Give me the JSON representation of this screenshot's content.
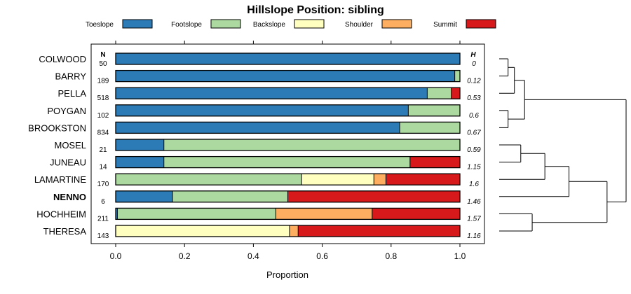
{
  "chart_data": {
    "type": "bar",
    "stacked": "horizontal proportion",
    "title": "Hillslope Position: sibling",
    "xlabel": "Proportion",
    "xlim": [
      0,
      1
    ],
    "xticks": [
      "0.0",
      "0.2",
      "0.4",
      "0.6",
      "0.8",
      "1.0"
    ],
    "legend_placement": "top",
    "n_header": "N",
    "h_header": "H",
    "classes": [
      {
        "name": "Toeslope",
        "color": "#2C7BB6"
      },
      {
        "name": "Footslope",
        "color": "#ABD9A0"
      },
      {
        "name": "Backslope",
        "color": "#FFFFBF"
      },
      {
        "name": "Shoulder",
        "color": "#FDAE61"
      },
      {
        "name": "Summit",
        "color": "#D7191C"
      }
    ],
    "rows": [
      {
        "label": "COLWOOD",
        "n": "50",
        "h": "0",
        "bold": false,
        "values": [
          1.0,
          0,
          0,
          0,
          0
        ]
      },
      {
        "label": "BARRY",
        "n": "189",
        "h": "0.12",
        "bold": false,
        "values": [
          0.985,
          0.015,
          0,
          0,
          0
        ]
      },
      {
        "label": "PELLA",
        "n": "518",
        "h": "0.53",
        "bold": false,
        "values": [
          0.905,
          0.07,
          0,
          0,
          0.025
        ]
      },
      {
        "label": "POYGAN",
        "n": "102",
        "h": "0.6",
        "bold": false,
        "values": [
          0.85,
          0.15,
          0,
          0,
          0
        ]
      },
      {
        "label": "BROOKSTON",
        "n": "834",
        "h": "0.67",
        "bold": false,
        "values": [
          0.825,
          0.175,
          0,
          0,
          0
        ]
      },
      {
        "label": "MOSEL",
        "n": "21",
        "h": "0.59",
        "bold": false,
        "values": [
          0.14,
          0.86,
          0,
          0,
          0
        ]
      },
      {
        "label": "JUNEAU",
        "n": "14",
        "h": "1.15",
        "bold": false,
        "values": [
          0.14,
          0.715,
          0,
          0,
          0.145
        ]
      },
      {
        "label": "LAMARTINE",
        "n": "170",
        "h": "1.6",
        "bold": false,
        "values": [
          0,
          0.54,
          0.21,
          0.035,
          0.215
        ]
      },
      {
        "label": "NENNO",
        "n": "6",
        "h": "1.46",
        "bold": true,
        "values": [
          0.165,
          0.335,
          0,
          0,
          0.5
        ]
      },
      {
        "label": "HOCHHEIM",
        "n": "211",
        "h": "1.57",
        "bold": false,
        "values": [
          0.005,
          0.46,
          0,
          0.28,
          0.255
        ]
      },
      {
        "label": "THERESA",
        "n": "143",
        "h": "1.16",
        "bold": false,
        "values": [
          0,
          0,
          0.505,
          0.025,
          0.47
        ]
      }
    ],
    "dendrogram": {
      "merges": [
        {
          "a": "r0",
          "b": "r1",
          "height": 0.07
        },
        {
          "a": "m0",
          "b": "r2",
          "height": 0.12
        },
        {
          "a": "r3",
          "b": "r4",
          "height": 0.07
        },
        {
          "a": "m1",
          "b": "m2",
          "height": 0.2
        },
        {
          "a": "r5",
          "b": "r6",
          "height": 0.17
        },
        {
          "a": "m4",
          "b": "r7",
          "height": 0.36
        },
        {
          "a": "m5",
          "b": "r8",
          "height": 0.55
        },
        {
          "a": "r9",
          "b": "r10",
          "height": 0.26
        },
        {
          "a": "m6",
          "b": "m7",
          "height": 0.85
        },
        {
          "a": "m3",
          "b": "m8",
          "height": 1.0
        }
      ]
    }
  }
}
